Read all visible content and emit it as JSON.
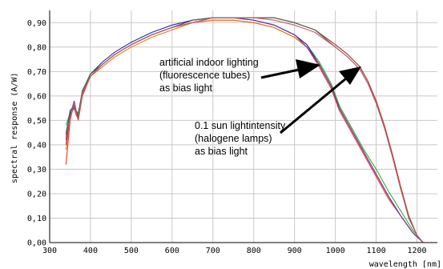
{
  "chart_data": {
    "type": "line",
    "title": "",
    "xlabel": "wavelength [nm]",
    "ylabel": "spectral response (A/W)",
    "xlim": [
      300,
      1250
    ],
    "ylim": [
      0,
      0.95
    ],
    "xticks": [
      300,
      400,
      500,
      600,
      700,
      800,
      900,
      1000,
      1100,
      1200
    ],
    "yticks": [
      0.0,
      0.1,
      0.2,
      0.3,
      0.4,
      0.5,
      0.6,
      0.7,
      0.8,
      0.9
    ],
    "x_tick_labels": [
      "300",
      "400",
      "500",
      "600",
      "700",
      "800",
      "900",
      "1000",
      "1100",
      "1200"
    ],
    "y_tick_labels": [
      "0,00",
      "0,10",
      "0,20",
      "0,30",
      "0,40",
      "0,50",
      "0,60",
      "0,70",
      "0,80",
      "0,90"
    ],
    "grid": true,
    "annotations": [
      {
        "lines": [
          "artificial indoor lighting",
          "(fluorescence tubes)",
          "as bias light"
        ]
      },
      {
        "lines": [
          "0.1 sun lightintensity",
          "(halogene lamps)",
          "as bias light"
        ]
      }
    ],
    "series": [
      {
        "color": "#e03030",
        "group": "fluorescence",
        "x": [
          340,
          350,
          360,
          365,
          370,
          380,
          400,
          430,
          460,
          500,
          550,
          600,
          650,
          700,
          750,
          800,
          850,
          900,
          930,
          960,
          990,
          1010,
          1040,
          1070,
          1100,
          1130,
          1160,
          1190,
          1215
        ],
        "y": [
          0.32,
          0.5,
          0.57,
          0.53,
          0.5,
          0.6,
          0.68,
          0.73,
          0.77,
          0.81,
          0.85,
          0.88,
          0.9,
          0.91,
          0.91,
          0.9,
          0.88,
          0.84,
          0.8,
          0.72,
          0.63,
          0.54,
          0.45,
          0.36,
          0.27,
          0.18,
          0.11,
          0.04,
          0.0
        ]
      },
      {
        "color": "#e07a20",
        "group": "fluorescence",
        "x": [
          340,
          350,
          360,
          365,
          370,
          380,
          400,
          430,
          460,
          500,
          550,
          600,
          650,
          700,
          750,
          800,
          850,
          900,
          930,
          960,
          990,
          1010,
          1040,
          1070,
          1100,
          1130,
          1160,
          1190,
          1215
        ],
        "y": [
          0.38,
          0.52,
          0.55,
          0.52,
          0.51,
          0.61,
          0.68,
          0.72,
          0.76,
          0.8,
          0.84,
          0.87,
          0.9,
          0.91,
          0.91,
          0.9,
          0.88,
          0.84,
          0.8,
          0.73,
          0.64,
          0.55,
          0.46,
          0.37,
          0.28,
          0.19,
          0.11,
          0.04,
          0.0
        ]
      },
      {
        "color": "#30b030",
        "group": "fluorescence",
        "x": [
          340,
          350,
          360,
          365,
          370,
          380,
          400,
          430,
          460,
          500,
          550,
          600,
          650,
          700,
          750,
          800,
          850,
          900,
          930,
          960,
          990,
          1010,
          1040,
          1070,
          1100,
          1130,
          1160,
          1190,
          1215
        ],
        "y": [
          0.48,
          0.53,
          0.55,
          0.54,
          0.53,
          0.62,
          0.69,
          0.73,
          0.77,
          0.81,
          0.85,
          0.88,
          0.91,
          0.92,
          0.92,
          0.91,
          0.89,
          0.85,
          0.81,
          0.74,
          0.65,
          0.56,
          0.47,
          0.38,
          0.3,
          0.21,
          0.13,
          0.05,
          0.0
        ]
      },
      {
        "color": "#2a2aa0",
        "group": "fluorescence",
        "x": [
          340,
          350,
          360,
          365,
          370,
          380,
          400,
          430,
          460,
          500,
          550,
          600,
          650,
          700,
          750,
          800,
          850,
          900,
          930,
          960,
          990,
          1010,
          1040,
          1070,
          1100,
          1130,
          1160,
          1190,
          1215
        ],
        "y": [
          0.44,
          0.54,
          0.56,
          0.53,
          0.52,
          0.62,
          0.69,
          0.74,
          0.78,
          0.82,
          0.86,
          0.89,
          0.91,
          0.92,
          0.92,
          0.91,
          0.89,
          0.85,
          0.81,
          0.73,
          0.64,
          0.55,
          0.46,
          0.37,
          0.28,
          0.19,
          0.11,
          0.04,
          0.0
        ]
      },
      {
        "color": "#7a3aa8",
        "group": "fluorescence",
        "x": [
          340,
          350,
          360,
          365,
          370,
          380,
          400,
          430,
          460,
          500,
          550,
          600,
          650,
          700,
          750,
          800,
          850,
          900,
          930,
          960,
          990,
          1010,
          1040,
          1070,
          1100,
          1130,
          1160,
          1190,
          1215
        ],
        "y": [
          0.42,
          0.52,
          0.58,
          0.54,
          0.52,
          0.61,
          0.68,
          0.73,
          0.77,
          0.81,
          0.85,
          0.88,
          0.91,
          0.92,
          0.92,
          0.91,
          0.89,
          0.85,
          0.8,
          0.73,
          0.64,
          0.55,
          0.46,
          0.37,
          0.28,
          0.19,
          0.11,
          0.04,
          0.0
        ]
      },
      {
        "color": "#b03030",
        "group": "halogen",
        "x": [
          340,
          350,
          360,
          365,
          370,
          380,
          400,
          430,
          460,
          500,
          550,
          600,
          650,
          700,
          750,
          800,
          850,
          900,
          950,
          1000,
          1030,
          1060,
          1080,
          1100,
          1120,
          1140,
          1160,
          1180,
          1200,
          1215
        ],
        "y": [
          0.4,
          0.52,
          0.56,
          0.53,
          0.51,
          0.61,
          0.68,
          0.73,
          0.77,
          0.81,
          0.85,
          0.88,
          0.9,
          0.92,
          0.92,
          0.92,
          0.92,
          0.9,
          0.87,
          0.81,
          0.77,
          0.72,
          0.66,
          0.58,
          0.48,
          0.36,
          0.23,
          0.11,
          0.03,
          0.0
        ]
      },
      {
        "color": "#5a5a5a",
        "group": "halogen",
        "x": [
          340,
          350,
          360,
          365,
          370,
          380,
          400,
          430,
          460,
          500,
          550,
          600,
          650,
          700,
          750,
          800,
          850,
          900,
          950,
          1000,
          1030,
          1060,
          1080,
          1100,
          1120,
          1140,
          1160,
          1180,
          1200,
          1215
        ],
        "y": [
          0.45,
          0.53,
          0.55,
          0.53,
          0.52,
          0.62,
          0.69,
          0.73,
          0.77,
          0.81,
          0.85,
          0.88,
          0.91,
          0.92,
          0.92,
          0.92,
          0.92,
          0.9,
          0.87,
          0.8,
          0.76,
          0.71,
          0.65,
          0.57,
          0.47,
          0.35,
          0.22,
          0.1,
          0.03,
          0.0
        ]
      },
      {
        "color": "#c06060",
        "group": "halogen",
        "x": [
          340,
          350,
          360,
          365,
          370,
          380,
          400,
          430,
          460,
          500,
          550,
          600,
          650,
          700,
          750,
          800,
          850,
          900,
          950,
          1000,
          1030,
          1060,
          1080,
          1100,
          1120,
          1140,
          1160,
          1180,
          1200,
          1215
        ],
        "y": [
          0.43,
          0.51,
          0.57,
          0.53,
          0.5,
          0.61,
          0.68,
          0.73,
          0.77,
          0.81,
          0.85,
          0.88,
          0.9,
          0.92,
          0.92,
          0.92,
          0.91,
          0.89,
          0.86,
          0.8,
          0.76,
          0.71,
          0.65,
          0.57,
          0.47,
          0.35,
          0.22,
          0.11,
          0.03,
          0.0
        ]
      }
    ]
  }
}
